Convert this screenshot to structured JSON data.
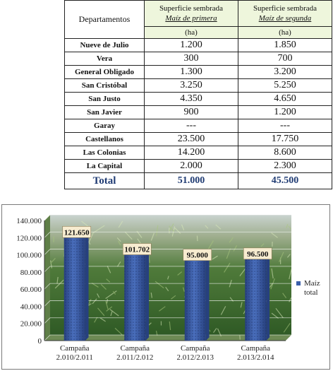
{
  "table": {
    "header": {
      "col0": "Departamentos",
      "col1_line1": "Superficie sembrada",
      "col1_line2": "Maíz de primera",
      "col1_unit": "(ha)",
      "col2_line1": "Superficie sembrada",
      "col2_line2": "Maíz de segunda",
      "col2_unit": "(ha)"
    },
    "rows": [
      {
        "dep": "Nueve de Julio",
        "v1": "1.200",
        "v2": "1.850"
      },
      {
        "dep": "Vera",
        "v1": "300",
        "v2": "700"
      },
      {
        "dep": "General Obligado",
        "v1": "1.300",
        "v2": "3.200"
      },
      {
        "dep": "San Cristóbal",
        "v1": "3.250",
        "v2": "5.250"
      },
      {
        "dep": "San Justo",
        "v1": "4.350",
        "v2": "4.650"
      },
      {
        "dep": "San Javier",
        "v1": "900",
        "v2": "1.200"
      },
      {
        "dep": "Garay",
        "v1": "---",
        "v2": "---"
      },
      {
        "dep": "Castellanos",
        "v1": "23.500",
        "v2": "17.750"
      },
      {
        "dep": "Las Colonias",
        "v1": "14.200",
        "v2": "8.600"
      },
      {
        "dep": "La Capital",
        "v1": "2.000",
        "v2": "2.300"
      }
    ],
    "total": {
      "dep": "Total",
      "v1": "51.000",
      "v2": "45.500"
    }
  },
  "chart_data": {
    "type": "bar",
    "categories": [
      [
        "Campaña",
        "2.010/2.011"
      ],
      [
        "Campaña",
        "2.011/2.012"
      ],
      [
        "Campaña",
        "2.012/2.013"
      ],
      [
        "Campaña",
        "2.013/2.014"
      ]
    ],
    "series": [
      {
        "name": "Maíz total",
        "values": [
          121650,
          101702,
          95000,
          96500
        ]
      }
    ],
    "data_labels": [
      "121.650",
      "101.702",
      "95.000",
      "96.500"
    ],
    "ylim": [
      0,
      140000
    ],
    "y_ticks": [
      "0",
      "20.000",
      "40.000",
      "60.000",
      "80.000",
      "100.000",
      "120.000",
      "140.000"
    ],
    "legend_position": "right",
    "legend_label_lines": [
      "Maíz",
      "total"
    ],
    "background": "photo of corn field",
    "colors": {
      "bar": "#3b5faa",
      "bar_dark": "#27407e",
      "label_box": "#f7ecd0",
      "grid": "#ffffff"
    }
  }
}
